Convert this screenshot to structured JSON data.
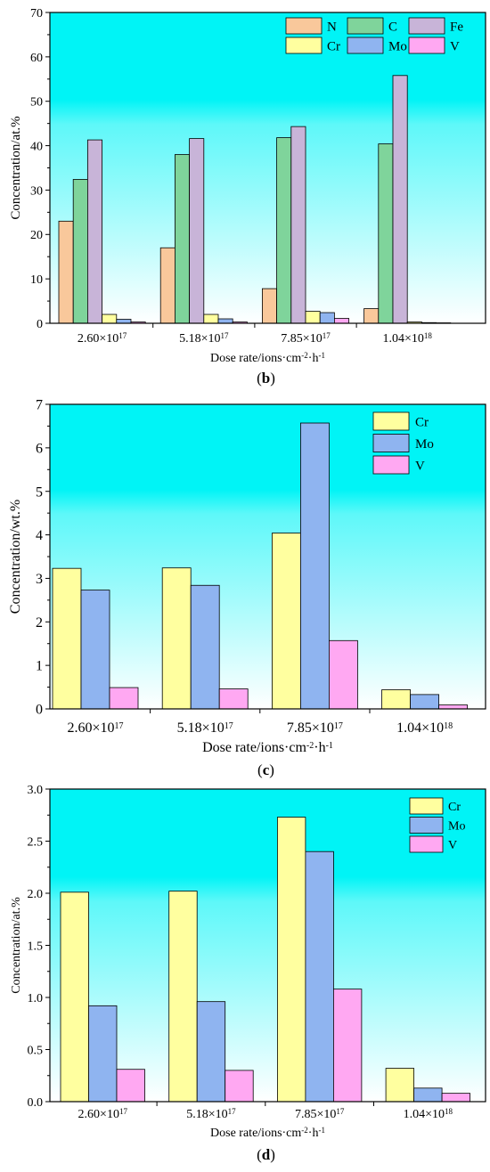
{
  "colors": {
    "N": "#f9c89b",
    "C": "#7fd49b",
    "Fe": "#c8b4d8",
    "Cr": "#ffff9f",
    "Mo": "#8fb4f0",
    "V": "#ffa8f2",
    "bg_top": "#00f4f6",
    "bg_bottom": "#ffffff"
  },
  "chart_data": [
    {
      "type": "bar",
      "panel_label": "(b)",
      "categories": [
        {
          "base": "2.60×10",
          "exp": "17"
        },
        {
          "base": "5.18×10",
          "exp": "17"
        },
        {
          "base": "7.85×10",
          "exp": "17"
        },
        {
          "base": "1.04×10",
          "exp": "18"
        }
      ],
      "series": [
        {
          "name": "N",
          "color_key": "N",
          "values": [
            23.0,
            17.0,
            7.8,
            3.3
          ]
        },
        {
          "name": "C",
          "color_key": "C",
          "values": [
            32.4,
            38.0,
            41.8,
            40.4
          ]
        },
        {
          "name": "Fe",
          "color_key": "Fe",
          "values": [
            41.3,
            41.6,
            44.3,
            55.8
          ]
        },
        {
          "name": "Cr",
          "color_key": "Cr",
          "values": [
            2.0,
            2.0,
            2.7,
            0.3
          ]
        },
        {
          "name": "Mo",
          "color_key": "Mo",
          "values": [
            0.9,
            1.0,
            2.4,
            0.15
          ]
        },
        {
          "name": "V",
          "color_key": "V",
          "values": [
            0.3,
            0.3,
            1.1,
            0.1
          ]
        }
      ],
      "ylabel": "Concentration/at.%",
      "xlabel": {
        "base": "Dose rate/ions·cm",
        "exp1": "-2",
        "mid": "·h",
        "exp2": "-1"
      },
      "ylim": [
        0,
        70
      ],
      "yticks": [
        "0",
        "10",
        "20",
        "30",
        "40",
        "50",
        "60",
        "70"
      ],
      "legend_columns": 3,
      "legend_position": "top-right",
      "grid": false
    },
    {
      "type": "bar",
      "panel_label": "(c)",
      "categories": [
        {
          "base": "2.60×10",
          "exp": "17"
        },
        {
          "base": "5.18×10",
          "exp": "17"
        },
        {
          "base": "7.85×10",
          "exp": "17"
        },
        {
          "base": "1.04×10",
          "exp": "18"
        }
      ],
      "series": [
        {
          "name": "Cr",
          "color_key": "Cr",
          "values": [
            3.23,
            3.24,
            4.04,
            0.44
          ]
        },
        {
          "name": "Mo",
          "color_key": "Mo",
          "values": [
            2.73,
            2.84,
            6.57,
            0.33
          ]
        },
        {
          "name": "V",
          "color_key": "V",
          "values": [
            0.49,
            0.46,
            1.57,
            0.09
          ]
        }
      ],
      "ylabel": "Concentration/wt.%",
      "xlabel": {
        "base": "Dose rate/ions·cm",
        "exp1": "-2",
        "mid": "·h",
        "exp2": "-1"
      },
      "ylim": [
        0,
        7
      ],
      "yticks": [
        "0",
        "1",
        "2",
        "3",
        "4",
        "5",
        "6",
        "7"
      ],
      "legend_columns": 1,
      "legend_position": "top-right",
      "grid": false
    },
    {
      "type": "bar",
      "panel_label": "(d)",
      "categories": [
        {
          "base": "2.60×10",
          "exp": "17"
        },
        {
          "base": "5.18×10",
          "exp": "17"
        },
        {
          "base": "7.85×10",
          "exp": "17"
        },
        {
          "base": "1.04×10",
          "exp": "18"
        }
      ],
      "series": [
        {
          "name": "Cr",
          "color_key": "Cr",
          "values": [
            2.01,
            2.02,
            2.73,
            0.32
          ]
        },
        {
          "name": "Mo",
          "color_key": "Mo",
          "values": [
            0.92,
            0.96,
            2.4,
            0.13
          ]
        },
        {
          "name": "V",
          "color_key": "V",
          "values": [
            0.31,
            0.3,
            1.08,
            0.08
          ]
        }
      ],
      "ylabel": "Concentration/at.%",
      "xlabel": {
        "base": "Dose rate/ions·cm",
        "exp1": "-2",
        "mid": "·h",
        "exp2": "-1"
      },
      "ylim": [
        0,
        3
      ],
      "yticks": [
        "0.0",
        "0.5",
        "1.0",
        "1.5",
        "2.0",
        "2.5",
        "3.0"
      ],
      "legend_columns": 1,
      "legend_position": "top-right",
      "grid": false
    }
  ]
}
